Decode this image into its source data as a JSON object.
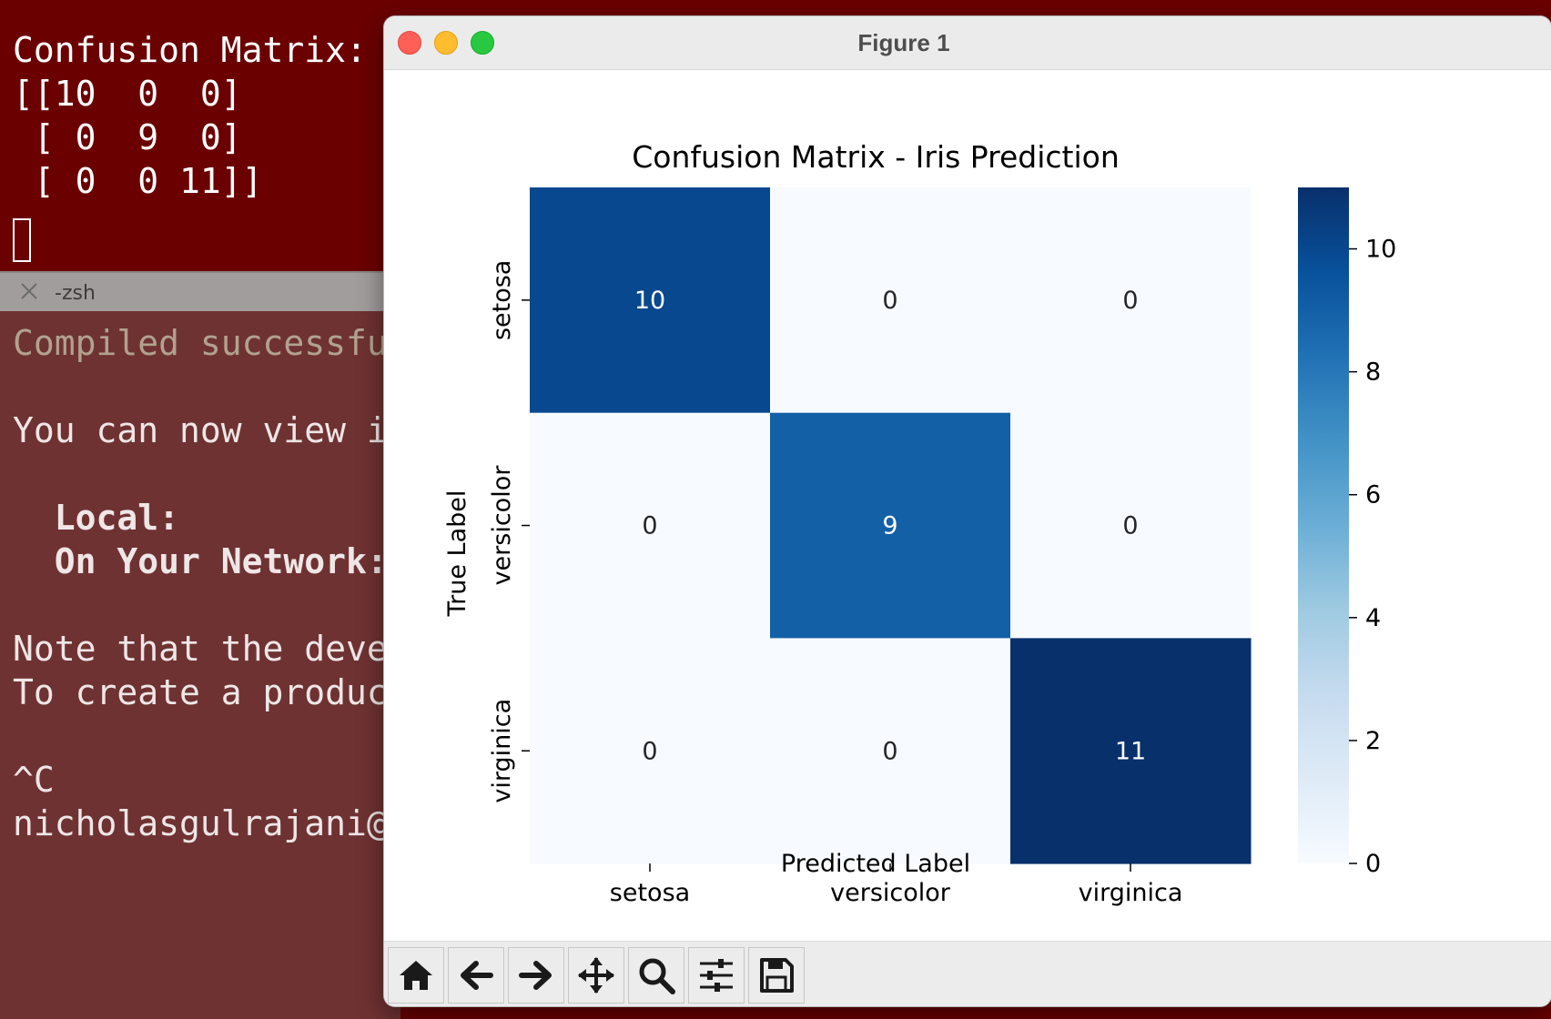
{
  "terminal": {
    "output_lines": [
      "Confusion Matrix:",
      "[[10  0  0]",
      " [ 0  9  0]",
      " [ 0  0 11]]"
    ],
    "tab_title": "-zsh",
    "lines": {
      "compiled": "Compiled successful",
      "view": "You can now view ir",
      "local": "  Local:",
      "network": "  On Your Network:",
      "note1": "Note that the devel",
      "note2": "To create a product",
      "ctrlc": "^C",
      "prompt": "nicholasgulrajani@n"
    }
  },
  "window": {
    "title": "Figure 1",
    "toolbar": [
      "home-icon",
      "back-arrow-icon",
      "forward-arrow-icon",
      "pan-icon",
      "zoom-icon",
      "configure-subplots-icon",
      "save-icon"
    ]
  },
  "chart_data": {
    "type": "heatmap",
    "title": "Confusion Matrix - Iris Prediction",
    "xlabel": "Predicted Label",
    "ylabel": "True Label",
    "x_categories": [
      "setosa",
      "versicolor",
      "virginica"
    ],
    "y_categories": [
      "setosa",
      "versicolor",
      "virginica"
    ],
    "values": [
      [
        10,
        0,
        0
      ],
      [
        0,
        9,
        0
      ],
      [
        0,
        0,
        11
      ]
    ],
    "colormap": "Blues",
    "colorbar": {
      "range": [
        0,
        11
      ],
      "ticks": [
        0,
        2,
        4,
        6,
        8,
        10
      ]
    },
    "colors": {
      "low": "#f7fbff",
      "high": "#08306b"
    }
  }
}
